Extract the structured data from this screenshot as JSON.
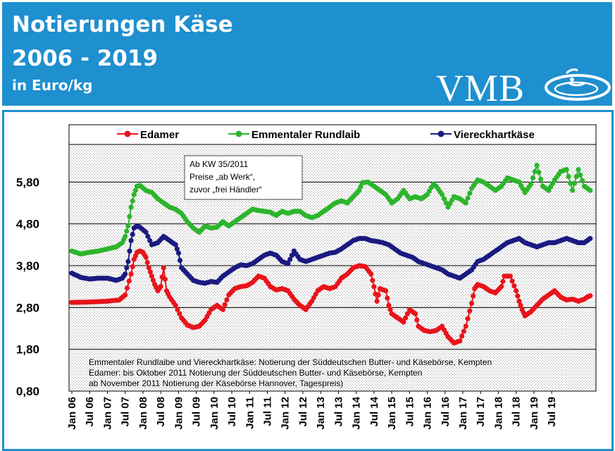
{
  "header": {
    "title_line1": "Notierungen Käse",
    "title_line2": "2006 - 2019",
    "subtitle": "in Euro/kg",
    "logo_text": "VMB",
    "background_color": "#1e8fcf"
  },
  "chart_data": {
    "type": "line",
    "ylim": [
      0.8,
      6.8
    ],
    "yticks": [
      "0,80",
      "1,80",
      "2,80",
      "3,80",
      "4,80",
      "5,80"
    ],
    "ytick_values": [
      0.8,
      1.8,
      2.8,
      3.8,
      4.8,
      5.8
    ],
    "xticks": [
      "Jan 06",
      "Jul 06",
      "Jan 07",
      "Jul 07",
      "Jan 08",
      "Jul 08",
      "Jan 09",
      "Jul 09",
      "Jan 10",
      "Jul 10",
      "Jan 11",
      "Jul 11",
      "Jan 12",
      "Jul 12",
      "Jan 13",
      "Jul 13",
      "Jan 14",
      "Jul 14",
      "Jan 15",
      "Jul 15",
      "Jan 16",
      "Jul 16",
      "Jan 17",
      "Jul 17",
      "Jan 18",
      "Jul 18",
      "Jan 19",
      "Jul 19"
    ],
    "x_start": "Jan 06",
    "legend_position": "top",
    "grid": true,
    "annotation": {
      "line1": "Ab KW 35/2011",
      "line2": "Preise „ab Werk“,",
      "line3": "zuvor „frei Händler“"
    },
    "notes": {
      "line1": "Emmentaler Rundlaibe und Viereckhartkäse: Notierung der Süddeutschen Butter-  und Käsebörse, Kempten",
      "line2": "Edamer: bis Oktober 2011  Notierung der Süddeutschen Butter- und Käsebörse, Kempten",
      "line3": "ab November 2011  Notierung der Käsebörse Hannover, Tagespreis)"
    },
    "series": [
      {
        "name": "Edamer",
        "color": "#e8141b",
        "points": [
          [
            0,
            2.92
          ],
          [
            6,
            2.93
          ],
          [
            12,
            2.95
          ],
          [
            16,
            2.98
          ],
          [
            18,
            3.1
          ],
          [
            20,
            3.6
          ],
          [
            21,
            3.95
          ],
          [
            22,
            4.12
          ],
          [
            23,
            4.15
          ],
          [
            24,
            4.12
          ],
          [
            25,
            4.0
          ],
          [
            26,
            3.75
          ],
          [
            27,
            3.55
          ],
          [
            28,
            3.35
          ],
          [
            29,
            3.2
          ],
          [
            30,
            3.3
          ],
          [
            31,
            3.75
          ],
          [
            32,
            3.2
          ],
          [
            33,
            3.05
          ],
          [
            35,
            2.85
          ],
          [
            37,
            2.55
          ],
          [
            39,
            2.38
          ],
          [
            41,
            2.32
          ],
          [
            43,
            2.35
          ],
          [
            45,
            2.5
          ],
          [
            47,
            2.75
          ],
          [
            49,
            2.85
          ],
          [
            51,
            2.75
          ],
          [
            53,
            3.1
          ],
          [
            55,
            3.25
          ],
          [
            57,
            3.3
          ],
          [
            59,
            3.32
          ],
          [
            61,
            3.4
          ],
          [
            63,
            3.55
          ],
          [
            65,
            3.5
          ],
          [
            67,
            3.3
          ],
          [
            69,
            3.22
          ],
          [
            71,
            3.25
          ],
          [
            73,
            3.2
          ],
          [
            75,
            3.0
          ],
          [
            77,
            2.85
          ],
          [
            79,
            2.75
          ],
          [
            81,
            2.95
          ],
          [
            83,
            3.2
          ],
          [
            85,
            3.3
          ],
          [
            87,
            3.25
          ],
          [
            89,
            3.3
          ],
          [
            91,
            3.5
          ],
          [
            93,
            3.6
          ],
          [
            95,
            3.75
          ],
          [
            97,
            3.8
          ],
          [
            99,
            3.78
          ],
          [
            101,
            3.6
          ],
          [
            102,
            3.3
          ],
          [
            103,
            2.95
          ],
          [
            104,
            3.25
          ],
          [
            106,
            3.2
          ],
          [
            107,
            2.85
          ],
          [
            108,
            2.65
          ],
          [
            110,
            2.55
          ],
          [
            112,
            2.45
          ],
          [
            114,
            2.75
          ],
          [
            116,
            2.65
          ],
          [
            117,
            2.35
          ],
          [
            119,
            2.25
          ],
          [
            121,
            2.22
          ],
          [
            123,
            2.25
          ],
          [
            125,
            2.35
          ],
          [
            127,
            2.1
          ],
          [
            129,
            1.95
          ],
          [
            131,
            2.0
          ],
          [
            133,
            2.35
          ],
          [
            135,
            2.9
          ],
          [
            136,
            3.25
          ],
          [
            137,
            3.35
          ],
          [
            139,
            3.3
          ],
          [
            141,
            3.2
          ],
          [
            143,
            3.15
          ],
          [
            145,
            3.3
          ],
          [
            146,
            3.55
          ],
          [
            148,
            3.55
          ],
          [
            150,
            3.2
          ],
          [
            151,
            2.95
          ],
          [
            152,
            2.75
          ],
          [
            153,
            2.6
          ],
          [
            155,
            2.7
          ],
          [
            157,
            2.85
          ],
          [
            159,
            3.0
          ],
          [
            161,
            3.1
          ],
          [
            163,
            3.2
          ],
          [
            165,
            3.05
          ],
          [
            167,
            2.98
          ],
          [
            169,
            3.0
          ],
          [
            171,
            2.95
          ],
          [
            173,
            3.0
          ],
          [
            174,
            3.05
          ],
          [
            175,
            3.08
          ]
        ]
      },
      {
        "name": "Emmentaler Rundlaib",
        "color": "#2db52d",
        "points": [
          [
            0,
            4.15
          ],
          [
            3,
            4.08
          ],
          [
            6,
            4.12
          ],
          [
            9,
            4.15
          ],
          [
            12,
            4.2
          ],
          [
            15,
            4.25
          ],
          [
            17,
            4.35
          ],
          [
            18,
            4.5
          ],
          [
            19,
            4.75
          ],
          [
            20,
            5.2
          ],
          [
            21,
            5.5
          ],
          [
            22,
            5.7
          ],
          [
            23,
            5.72
          ],
          [
            25,
            5.6
          ],
          [
            27,
            5.55
          ],
          [
            29,
            5.4
          ],
          [
            31,
            5.3
          ],
          [
            33,
            5.2
          ],
          [
            35,
            5.15
          ],
          [
            37,
            5.05
          ],
          [
            39,
            4.85
          ],
          [
            41,
            4.7
          ],
          [
            43,
            4.6
          ],
          [
            45,
            4.75
          ],
          [
            47,
            4.7
          ],
          [
            49,
            4.72
          ],
          [
            51,
            4.85
          ],
          [
            53,
            4.75
          ],
          [
            55,
            4.85
          ],
          [
            57,
            4.95
          ],
          [
            59,
            5.05
          ],
          [
            61,
            5.15
          ],
          [
            63,
            5.12
          ],
          [
            65,
            5.1
          ],
          [
            67,
            5.08
          ],
          [
            69,
            5.0
          ],
          [
            71,
            5.1
          ],
          [
            73,
            5.05
          ],
          [
            75,
            5.1
          ],
          [
            77,
            5.1
          ],
          [
            79,
            5.0
          ],
          [
            81,
            4.95
          ],
          [
            83,
            5.0
          ],
          [
            85,
            5.1
          ],
          [
            87,
            5.2
          ],
          [
            89,
            5.3
          ],
          [
            91,
            5.35
          ],
          [
            93,
            5.3
          ],
          [
            95,
            5.45
          ],
          [
            97,
            5.6
          ],
          [
            98,
            5.78
          ],
          [
            100,
            5.8
          ],
          [
            102,
            5.7
          ],
          [
            104,
            5.6
          ],
          [
            106,
            5.5
          ],
          [
            108,
            5.3
          ],
          [
            110,
            5.4
          ],
          [
            112,
            5.6
          ],
          [
            114,
            5.4
          ],
          [
            116,
            5.45
          ],
          [
            118,
            5.4
          ],
          [
            120,
            5.5
          ],
          [
            122,
            5.75
          ],
          [
            123,
            5.7
          ],
          [
            125,
            5.5
          ],
          [
            127,
            5.2
          ],
          [
            129,
            5.45
          ],
          [
            131,
            5.4
          ],
          [
            133,
            5.3
          ],
          [
            135,
            5.65
          ],
          [
            137,
            5.85
          ],
          [
            139,
            5.8
          ],
          [
            141,
            5.7
          ],
          [
            143,
            5.6
          ],
          [
            145,
            5.7
          ],
          [
            147,
            5.9
          ],
          [
            149,
            5.85
          ],
          [
            151,
            5.8
          ],
          [
            153,
            5.55
          ],
          [
            155,
            5.75
          ],
          [
            157,
            6.2
          ],
          [
            159,
            5.7
          ],
          [
            161,
            5.6
          ],
          [
            163,
            5.85
          ],
          [
            165,
            6.05
          ],
          [
            167,
            6.1
          ],
          [
            169,
            5.6
          ],
          [
            171,
            6.1
          ],
          [
            173,
            5.7
          ],
          [
            175,
            5.6
          ]
        ]
      },
      {
        "name": "Viereckhartkäse",
        "color": "#1a1a80",
        "points": [
          [
            0,
            3.62
          ],
          [
            3,
            3.52
          ],
          [
            6,
            3.48
          ],
          [
            9,
            3.5
          ],
          [
            12,
            3.5
          ],
          [
            15,
            3.45
          ],
          [
            17,
            3.5
          ],
          [
            18,
            3.6
          ],
          [
            19,
            3.9
          ],
          [
            20,
            4.4
          ],
          [
            21,
            4.7
          ],
          [
            22,
            4.75
          ],
          [
            23,
            4.72
          ],
          [
            25,
            4.6
          ],
          [
            27,
            4.3
          ],
          [
            29,
            4.35
          ],
          [
            31,
            4.5
          ],
          [
            33,
            4.4
          ],
          [
            35,
            4.3
          ],
          [
            36,
            4.1
          ],
          [
            37,
            3.75
          ],
          [
            39,
            3.6
          ],
          [
            41,
            3.45
          ],
          [
            43,
            3.4
          ],
          [
            45,
            3.38
          ],
          [
            47,
            3.42
          ],
          [
            49,
            3.4
          ],
          [
            51,
            3.55
          ],
          [
            53,
            3.65
          ],
          [
            55,
            3.75
          ],
          [
            57,
            3.82
          ],
          [
            59,
            3.8
          ],
          [
            61,
            3.85
          ],
          [
            63,
            3.95
          ],
          [
            65,
            4.05
          ],
          [
            67,
            4.1
          ],
          [
            69,
            4.05
          ],
          [
            71,
            3.9
          ],
          [
            73,
            3.85
          ],
          [
            75,
            4.15
          ],
          [
            77,
            3.95
          ],
          [
            79,
            3.9
          ],
          [
            81,
            3.95
          ],
          [
            83,
            4.0
          ],
          [
            85,
            4.05
          ],
          [
            87,
            4.1
          ],
          [
            89,
            4.12
          ],
          [
            91,
            4.2
          ],
          [
            93,
            4.3
          ],
          [
            95,
            4.4
          ],
          [
            97,
            4.45
          ],
          [
            99,
            4.45
          ],
          [
            101,
            4.4
          ],
          [
            103,
            4.38
          ],
          [
            105,
            4.35
          ],
          [
            107,
            4.3
          ],
          [
            109,
            4.2
          ],
          [
            111,
            4.1
          ],
          [
            113,
            4.05
          ],
          [
            115,
            4.0
          ],
          [
            117,
            3.9
          ],
          [
            119,
            3.85
          ],
          [
            121,
            3.8
          ],
          [
            123,
            3.75
          ],
          [
            125,
            3.7
          ],
          [
            127,
            3.6
          ],
          [
            129,
            3.55
          ],
          [
            131,
            3.5
          ],
          [
            133,
            3.6
          ],
          [
            135,
            3.7
          ],
          [
            137,
            3.9
          ],
          [
            139,
            3.95
          ],
          [
            141,
            4.05
          ],
          [
            143,
            4.15
          ],
          [
            145,
            4.25
          ],
          [
            147,
            4.35
          ],
          [
            149,
            4.4
          ],
          [
            151,
            4.45
          ],
          [
            153,
            4.35
          ],
          [
            155,
            4.3
          ],
          [
            157,
            4.25
          ],
          [
            159,
            4.3
          ],
          [
            161,
            4.35
          ],
          [
            163,
            4.35
          ],
          [
            165,
            4.4
          ],
          [
            167,
            4.45
          ],
          [
            169,
            4.4
          ],
          [
            171,
            4.35
          ],
          [
            173,
            4.35
          ],
          [
            175,
            4.45
          ]
        ]
      }
    ]
  }
}
